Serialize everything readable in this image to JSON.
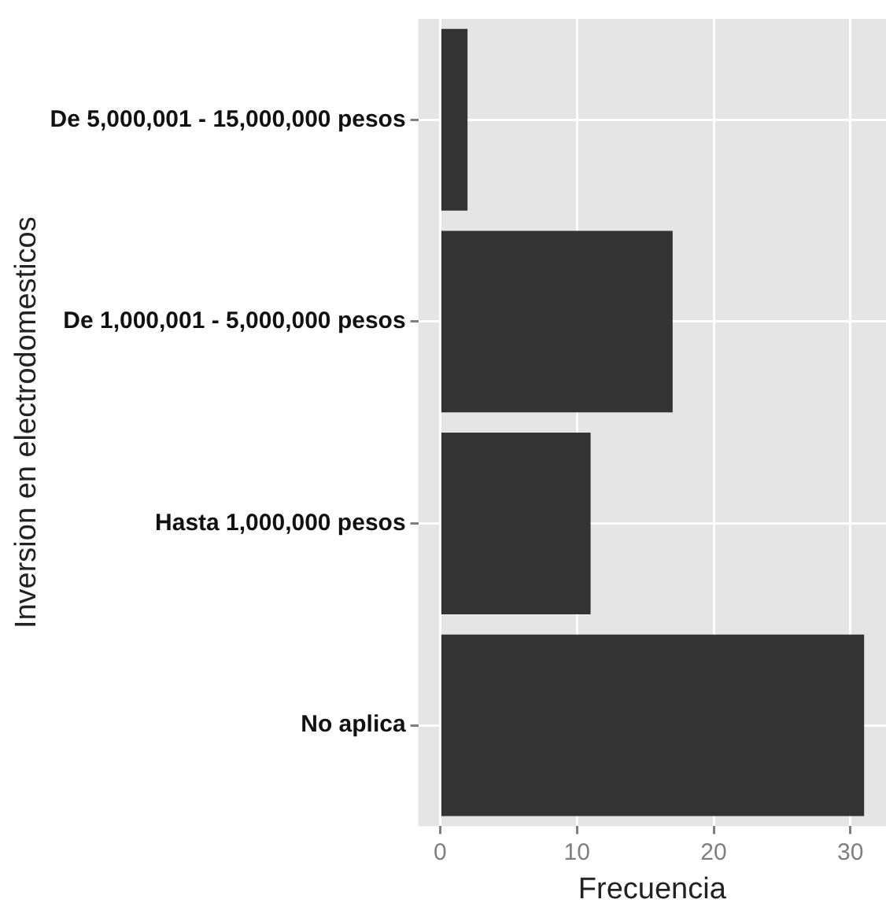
{
  "chart_data": {
    "type": "bar",
    "orientation": "horizontal",
    "xlabel": "Frecuencia",
    "ylabel": "Inversion en electrodomesticos",
    "categories": [
      "De 5,000,001 - 15,000,000 pesos",
      "De 1,000,001 - 5,000,000 pesos",
      "Hasta 1,000,000 pesos",
      "No aplica"
    ],
    "values": [
      2,
      17,
      11,
      31
    ],
    "color": "#333333",
    "xlim": [
      -1.6,
      32.6
    ],
    "xticks": [
      0,
      10,
      20,
      30
    ],
    "grid": true,
    "legend": false
  }
}
